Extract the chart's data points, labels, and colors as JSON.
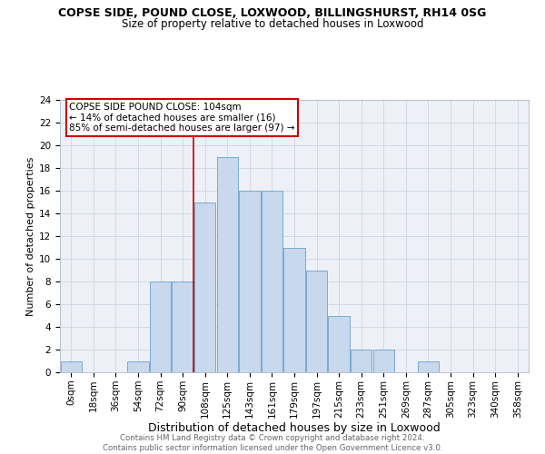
{
  "title": "COPSE SIDE, POUND CLOSE, LOXWOOD, BILLINGSHURST, RH14 0SG",
  "subtitle": "Size of property relative to detached houses in Loxwood",
  "xlabel": "Distribution of detached houses by size in Loxwood",
  "ylabel": "Number of detached properties",
  "categories": [
    "0sqm",
    "18sqm",
    "36sqm",
    "54sqm",
    "72sqm",
    "90sqm",
    "108sqm",
    "125sqm",
    "143sqm",
    "161sqm",
    "179sqm",
    "197sqm",
    "215sqm",
    "233sqm",
    "251sqm",
    "269sqm",
    "287sqm",
    "305sqm",
    "323sqm",
    "340sqm",
    "358sqm"
  ],
  "values": [
    1,
    0,
    0,
    1,
    8,
    8,
    15,
    19,
    16,
    16,
    11,
    9,
    5,
    2,
    2,
    0,
    1,
    0,
    0,
    0,
    0
  ],
  "bar_color": "#c8d8ed",
  "bar_edgecolor": "#7aaad0",
  "highlight_line_index": 6,
  "highlight_box_text": "COPSE SIDE POUND CLOSE: 104sqm\n← 14% of detached houses are smaller (16)\n85% of semi-detached houses are larger (97) →",
  "box_color": "#cc0000",
  "ylim": [
    0,
    24
  ],
  "yticks": [
    0,
    2,
    4,
    6,
    8,
    10,
    12,
    14,
    16,
    18,
    20,
    22,
    24
  ],
  "grid_color": "#c8d0d8",
  "background_color": "#edf1f7",
  "title_fontsize": 9,
  "subtitle_fontsize": 8.5,
  "ylabel_fontsize": 8,
  "xlabel_fontsize": 9,
  "tick_fontsize": 7.5,
  "footer_line1": "Contains HM Land Registry data © Crown copyright and database right 2024.",
  "footer_line2": "Contains public sector information licensed under the Open Government Licence v3.0."
}
